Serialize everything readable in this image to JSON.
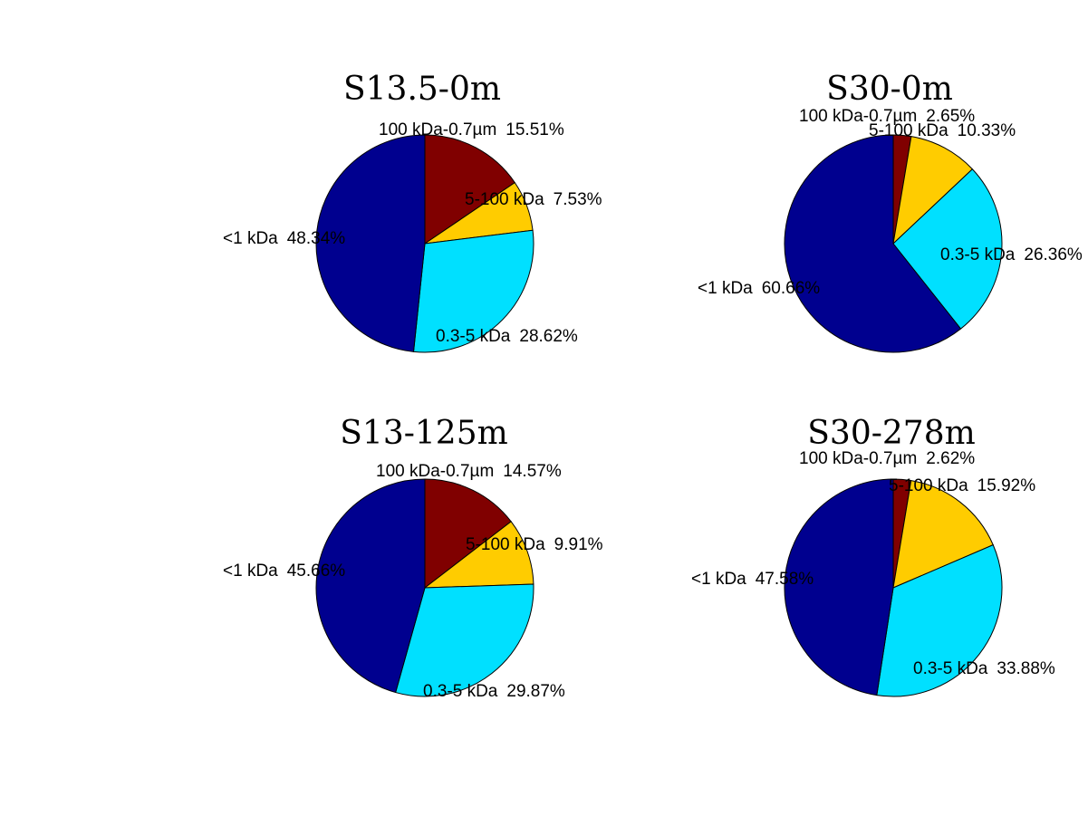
{
  "colors": {
    "100 kDa-0.7µm": "#800000",
    "5-100 kDa": "#FFCC00",
    "0.3-5 kDa": "#00E0FF",
    "<1 kDa": "#00008F"
  },
  "chart_data": [
    {
      "type": "pie",
      "title": "S13.5-0m",
      "slices": [
        {
          "label": "100 kDa-0.7µm",
          "value": 15.51,
          "text": "15.51%"
        },
        {
          "label": "5-100 kDa",
          "value": 7.53,
          "text": "7.53%"
        },
        {
          "label": "0.3-5 kDa",
          "value": 28.62,
          "text": "28.62%"
        },
        {
          "label": "<1 kDa",
          "value": 48.34,
          "text": "48.34%"
        }
      ]
    },
    {
      "type": "pie",
      "title": "S30-0m",
      "slices": [
        {
          "label": "100 kDa-0.7µm",
          "value": 2.65,
          "text": "2.65%"
        },
        {
          "label": "5-100 kDa",
          "value": 10.33,
          "text": "10.33%"
        },
        {
          "label": "0.3-5 kDa",
          "value": 26.36,
          "text": "26.36%"
        },
        {
          "label": "<1 kDa",
          "value": 60.66,
          "text": "60.66%"
        }
      ]
    },
    {
      "type": "pie",
      "title": "S13-125m",
      "slices": [
        {
          "label": "100 kDa-0.7µm",
          "value": 14.57,
          "text": "14.57%"
        },
        {
          "label": "5-100 kDa",
          "value": 9.91,
          "text": "9.91%"
        },
        {
          "label": "0.3-5 kDa",
          "value": 29.87,
          "text": "29.87%"
        },
        {
          "label": "<1 kDa",
          "value": 45.66,
          "text": "45.66%"
        }
      ]
    },
    {
      "type": "pie",
      "title": "S30-278m",
      "slices": [
        {
          "label": "100 kDa-0.7µm",
          "value": 2.62,
          "text": "2.62%"
        },
        {
          "label": "5-100 kDa",
          "value": 15.92,
          "text": "15.92%"
        },
        {
          "label": "0.3-5 kDa",
          "value": 33.88,
          "text": "33.88%"
        },
        {
          "label": "<1 kDa",
          "value": 47.58,
          "text": "47.58%"
        }
      ]
    }
  ]
}
